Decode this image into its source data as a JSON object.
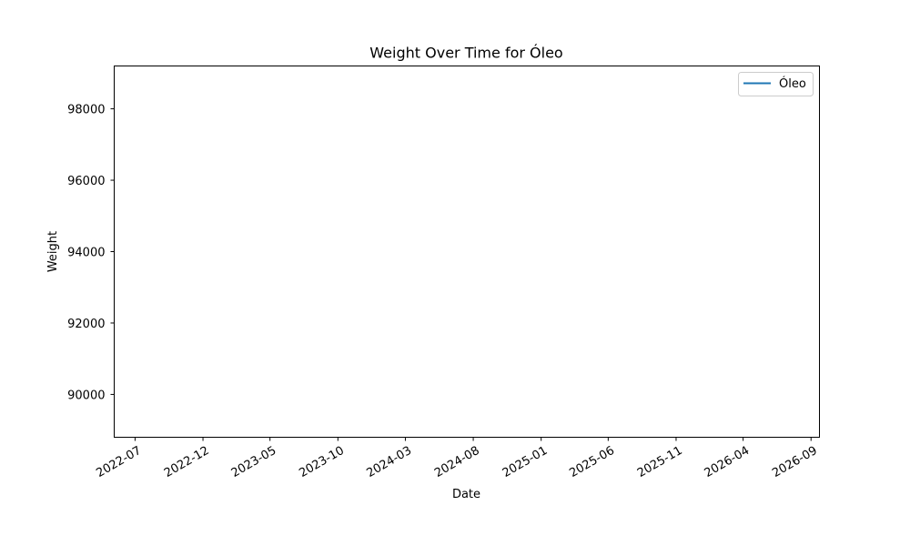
{
  "chart_data": {
    "type": "line",
    "title": "Weight Over Time for Óleo",
    "xlabel": "Date",
    "ylabel": "Weight",
    "x_ticks": [
      "2022-07",
      "2022-12",
      "2023-05",
      "2023-10",
      "2024-03",
      "2024-08",
      "2025-01",
      "2025-06",
      "2025-11",
      "2026-04",
      "2026-09"
    ],
    "y_ticks": [
      90000,
      92000,
      94000,
      96000,
      98000
    ],
    "xlim": [
      "2022-05-15",
      "2026-09-20"
    ],
    "ylim": [
      88800,
      99200
    ],
    "grid": false,
    "legend_position": "top-right",
    "series": [
      {
        "name": "Óleo",
        "color": "#1f77b4",
        "points": []
      }
    ]
  }
}
